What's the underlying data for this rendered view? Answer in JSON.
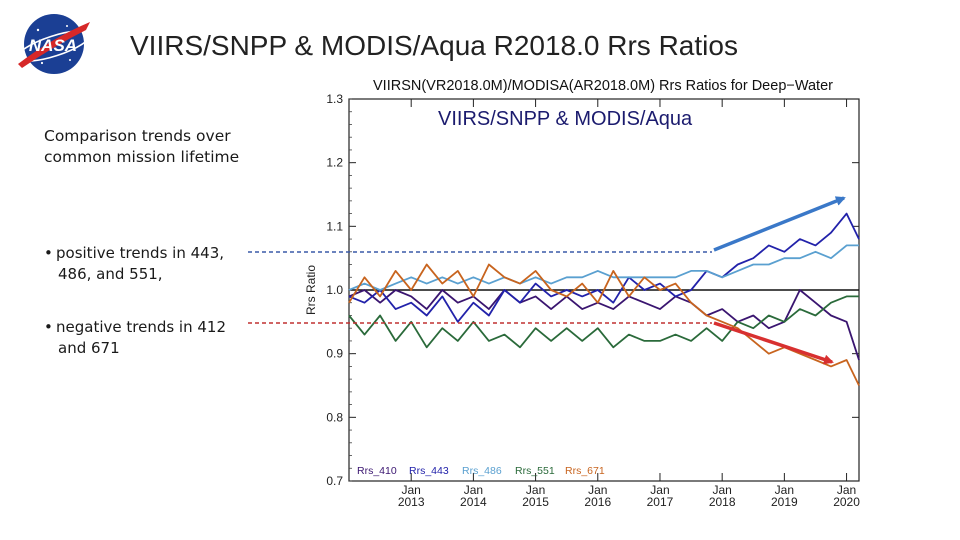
{
  "slide": {
    "title": "VIIRS/SNPP & MODIS/Aqua R2018.0 Rrs Ratios",
    "intro": [
      "Comparison trends over",
      "common mission lifetime"
    ],
    "bullets": [
      {
        "lines": [
          "positive trends in 443,",
          "486, and 551,"
        ]
      },
      {
        "lines": [
          "negative trends in 412",
          "and 671"
        ]
      }
    ],
    "overlay_caption": "VIIRS/SNPP & MODIS/Aqua",
    "logo_text": "NASA"
  },
  "colors": {
    "Rrs_410": "#3a1570",
    "Rrs_443": "#2222aa",
    "Rrs_486": "#5aa0d0",
    "Rrs_551": "#2a6a3a",
    "Rrs_671": "#c8641e",
    "blue_arrow": "#3a78c8",
    "red_arrow": "#d83030",
    "blue_dashed": "#3a5aa8",
    "red_dashed": "#c03030"
  },
  "chart_data": {
    "type": "line",
    "title": "VIIRSN(VR2018.0M)/MODISA(AR2018.0M)  Rrs Ratios for Deep−Water",
    "ylabel": "Rrs Ratio",
    "xlabel": "",
    "ylim": [
      0.7,
      1.3
    ],
    "xlim": [
      2012.0,
      2020.2
    ],
    "yticks": [
      "0.7",
      "0.8",
      "0.9",
      "1.0",
      "1.1",
      "1.2",
      "1.3"
    ],
    "xticks": [
      {
        "top": "Jan",
        "bottom": "2013",
        "x": 2013
      },
      {
        "top": "Jan",
        "bottom": "2014",
        "x": 2014
      },
      {
        "top": "Jan",
        "bottom": "2015",
        "x": 2015
      },
      {
        "top": "Jan",
        "bottom": "2016",
        "x": 2016
      },
      {
        "top": "Jan",
        "bottom": "2017",
        "x": 2017
      },
      {
        "top": "Jan",
        "bottom": "2018",
        "x": 2018
      },
      {
        "top": "Jan",
        "bottom": "2019",
        "x": 2019
      },
      {
        "top": "Jan",
        "bottom": "2020",
        "x": 2020
      }
    ],
    "reference_line": 1.0,
    "x": [
      2012.0,
      2012.25,
      2012.5,
      2012.75,
      2013.0,
      2013.25,
      2013.5,
      2013.75,
      2014.0,
      2014.25,
      2014.5,
      2014.75,
      2015.0,
      2015.25,
      2015.5,
      2015.75,
      2016.0,
      2016.25,
      2016.5,
      2016.75,
      2017.0,
      2017.25,
      2017.5,
      2017.75,
      2018.0,
      2018.25,
      2018.5,
      2018.75,
      2019.0,
      2019.25,
      2019.5,
      2019.75,
      2020.0,
      2020.2
    ],
    "series": [
      {
        "name": "Rrs_410",
        "values": [
          0.99,
          1.0,
          0.98,
          1.0,
          0.99,
          0.97,
          1.0,
          0.98,
          0.99,
          0.97,
          1.0,
          0.98,
          0.99,
          0.97,
          0.99,
          0.97,
          0.98,
          0.97,
          0.99,
          0.98,
          0.97,
          0.99,
          0.98,
          0.96,
          0.97,
          0.95,
          0.96,
          0.94,
          0.95,
          1.0,
          0.98,
          0.96,
          0.95,
          0.89
        ]
      },
      {
        "name": "Rrs_443",
        "values": [
          0.99,
          0.98,
          1.0,
          0.97,
          0.98,
          0.96,
          0.99,
          0.95,
          0.98,
          0.96,
          1.0,
          0.98,
          1.01,
          0.99,
          1.0,
          0.99,
          1.0,
          0.98,
          1.02,
          1.0,
          1.01,
          0.99,
          1.0,
          1.03,
          1.02,
          1.04,
          1.05,
          1.07,
          1.06,
          1.08,
          1.07,
          1.09,
          1.12,
          1.08
        ]
      },
      {
        "name": "Rrs_486",
        "values": [
          1.0,
          1.01,
          1.0,
          1.01,
          1.02,
          1.01,
          1.02,
          1.01,
          1.02,
          1.01,
          1.02,
          1.01,
          1.02,
          1.01,
          1.02,
          1.02,
          1.03,
          1.02,
          1.02,
          1.02,
          1.02,
          1.02,
          1.03,
          1.03,
          1.02,
          1.03,
          1.04,
          1.04,
          1.05,
          1.05,
          1.06,
          1.05,
          1.07,
          1.07
        ]
      },
      {
        "name": "Rrs_551",
        "values": [
          0.96,
          0.93,
          0.96,
          0.92,
          0.95,
          0.91,
          0.94,
          0.92,
          0.95,
          0.92,
          0.93,
          0.91,
          0.94,
          0.92,
          0.94,
          0.92,
          0.94,
          0.91,
          0.93,
          0.92,
          0.92,
          0.93,
          0.92,
          0.94,
          0.92,
          0.95,
          0.94,
          0.96,
          0.95,
          0.97,
          0.96,
          0.98,
          0.99,
          0.99
        ]
      },
      {
        "name": "Rrs_671",
        "values": [
          0.98,
          1.02,
          0.99,
          1.03,
          1.0,
          1.04,
          1.01,
          1.03,
          0.99,
          1.04,
          1.02,
          1.01,
          1.03,
          1.0,
          0.99,
          1.01,
          0.98,
          1.03,
          0.99,
          1.02,
          1.0,
          1.01,
          0.98,
          0.96,
          0.95,
          0.94,
          0.92,
          0.9,
          0.91,
          0.9,
          0.89,
          0.88,
          0.89,
          0.85
        ]
      }
    ],
    "legend": [
      "Rrs_410",
      "Rrs_443",
      "Rrs_486",
      "Rrs_551",
      "Rrs_671"
    ],
    "legend_placement": "bottom-left",
    "grid": false
  }
}
